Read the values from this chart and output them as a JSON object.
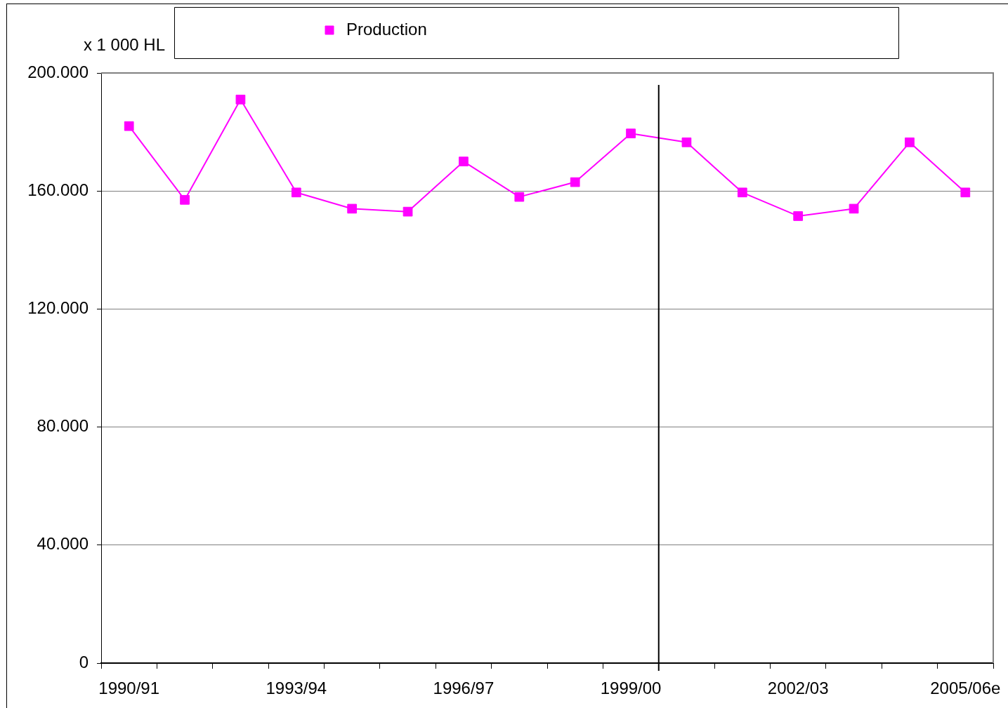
{
  "chart_data": {
    "type": "line",
    "ylabel": "x 1 000 HL",
    "categories": [
      "1990/91",
      null,
      null,
      "1993/94",
      null,
      null,
      "1996/97",
      null,
      null,
      "1999/00",
      null,
      null,
      "2002/03",
      null,
      null,
      "2005/06e"
    ],
    "series": [
      {
        "name": "Production",
        "color": "#ff00ff",
        "values": [
          182000,
          157000,
          191000,
          159500,
          154000,
          153000,
          170000,
          158000,
          163000,
          179500,
          176500,
          159500,
          151500,
          154000,
          176500,
          159500
        ]
      }
    ],
    "ylim": [
      0,
      200000
    ],
    "yticks": [
      0,
      {
        "value": 40000,
        "label": "40.000"
      },
      {
        "value": 80000,
        "label": "80.000"
      },
      {
        "value": 120000,
        "label": "120.000"
      },
      {
        "value": 160000,
        "label": "160.000"
      },
      {
        "value": 200000,
        "label": "200.000"
      }
    ],
    "grid": "y",
    "legend": "top",
    "marker": "square",
    "line_style": "solid"
  }
}
